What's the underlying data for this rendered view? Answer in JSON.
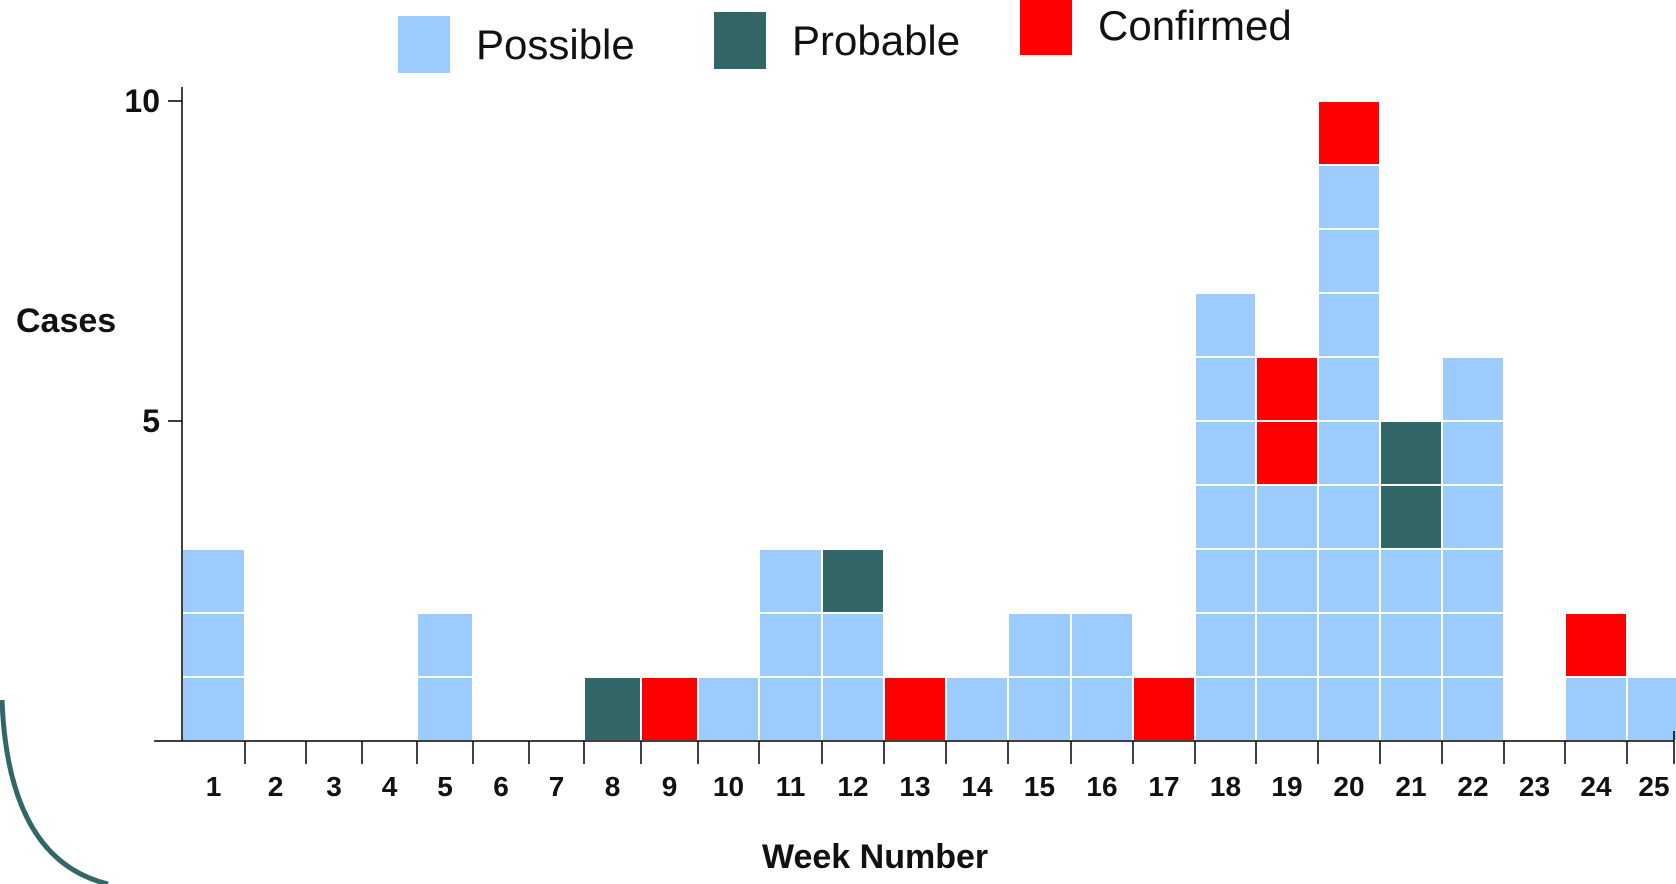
{
  "chart_data": {
    "type": "bar",
    "stacked": true,
    "xlabel": "Week Number",
    "ylabel": "Cases",
    "ylim": [
      0,
      10.3
    ],
    "yticks": [
      5,
      10
    ],
    "categories": [
      "1",
      "2",
      "3",
      "4",
      "5",
      "6",
      "7",
      "8",
      "9",
      "10",
      "11",
      "12",
      "13",
      "14",
      "15",
      "16",
      "17",
      "18",
      "19",
      "20",
      "21",
      "22",
      "23",
      "24",
      "25"
    ],
    "series": [
      {
        "name": "Possible",
        "color": "#9ccbfd",
        "values": [
          3,
          0,
          0,
          0,
          2,
          0,
          0,
          0,
          0,
          1,
          3,
          2,
          0,
          1,
          2,
          2,
          0,
          7,
          4,
          9,
          3,
          6,
          0,
          1,
          1
        ]
      },
      {
        "name": "Probable",
        "color": "#336666",
        "values": [
          0,
          0,
          0,
          0,
          0,
          0,
          0,
          1,
          0,
          0,
          0,
          1,
          0,
          0,
          0,
          0,
          0,
          0,
          0,
          0,
          2,
          0,
          0,
          0,
          0
        ]
      },
      {
        "name": "Confirmed",
        "color": "#ff0000",
        "values": [
          0,
          0,
          0,
          0,
          0,
          0,
          0,
          0,
          1,
          0,
          0,
          0,
          1,
          0,
          0,
          0,
          1,
          0,
          2,
          1,
          0,
          0,
          0,
          1,
          0
        ]
      }
    ],
    "legend": {
      "position": "top",
      "order": [
        "Possible",
        "Probable",
        "Confirmed"
      ]
    },
    "grid": false
  }
}
